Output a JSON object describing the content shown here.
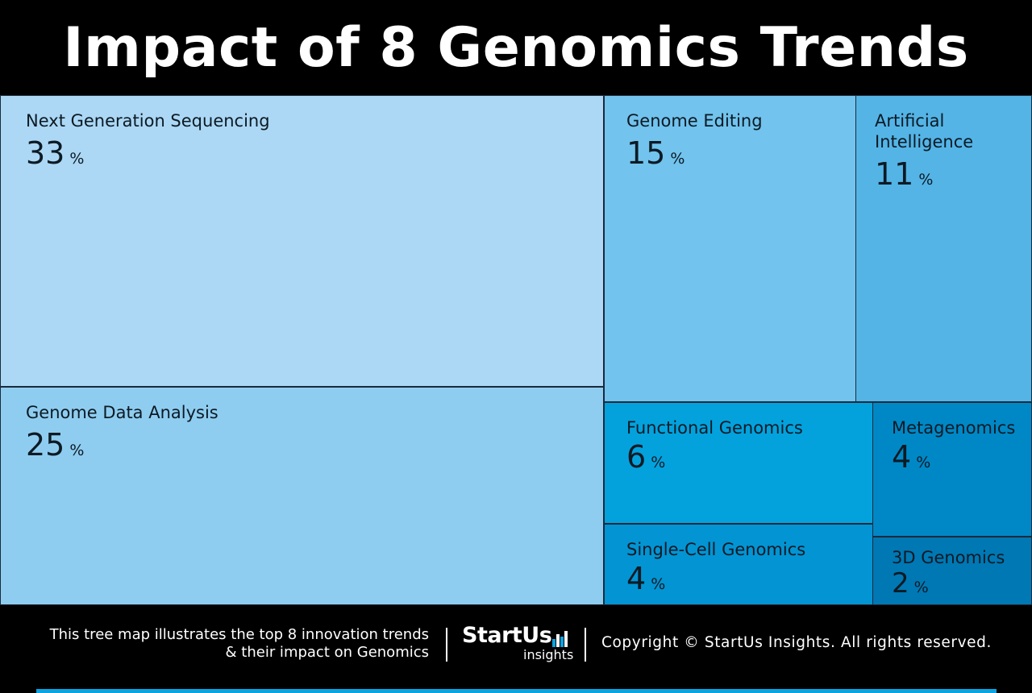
{
  "title": "Impact of 8 Genomics Trends",
  "chart_data": {
    "type": "treemap",
    "title": "Impact of 8 Genomics Trends",
    "unit": "%",
    "items": [
      {
        "name": "Next Generation Sequencing",
        "value": 33,
        "color": "#acd8f5"
      },
      {
        "name": "Genome Data Analysis",
        "value": 25,
        "color": "#8fcdf0"
      },
      {
        "name": "Genome Editing",
        "value": 15,
        "color": "#72c3ed"
      },
      {
        "name": "Artificial Intelligence",
        "value": 11,
        "color": "#54b4e6"
      },
      {
        "name": "Functional Genomics",
        "value": 6,
        "color": "#03a2dd"
      },
      {
        "name": "Single-Cell Genomics",
        "value": 4,
        "color": "#0394d3"
      },
      {
        "name": "Metagenomics",
        "value": 4,
        "color": "#0088c6"
      },
      {
        "name": "3D Genomics",
        "value": 2,
        "color": "#0078b4"
      }
    ]
  },
  "footer": {
    "description_line1": "This tree map illustrates the top 8 innovation trends",
    "description_line2": "& their impact on Genomics",
    "logo_main": "StartUs",
    "logo_sub": "insights",
    "copyright": "Copyright © StartUs Insights. All rights reserved.",
    "accent_color": "#0ba3e0"
  }
}
